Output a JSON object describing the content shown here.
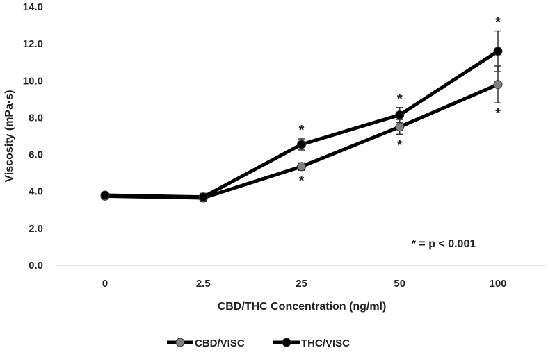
{
  "chart_data": {
    "type": "line",
    "title": "",
    "xlabel": "CBD/THC Concentration (ng/ml)",
    "ylabel": "Viscosity (mPa·s)",
    "categories": [
      "0",
      "2.5",
      "25",
      "50",
      "100"
    ],
    "ylim": [
      0,
      14
    ],
    "yticks": [
      "0.0",
      "2.0",
      "4.0",
      "6.0",
      "8.0",
      "10.0",
      "12.0",
      "14.0"
    ],
    "grid": false,
    "legend_position": "bottom",
    "annotation": "* = p < 0.001",
    "series": [
      {
        "name": "CBD/VISC",
        "color": "#808080",
        "values": [
          3.75,
          3.65,
          5.35,
          7.5,
          9.8
        ],
        "errors": [
          0.15,
          0.2,
          0.2,
          0.4,
          1.0
        ],
        "significant": [
          false,
          false,
          true,
          true,
          true
        ]
      },
      {
        "name": "THC/VISC",
        "color": "#000000",
        "values": [
          3.8,
          3.7,
          6.55,
          8.15,
          11.6
        ],
        "errors": [
          0.15,
          0.2,
          0.3,
          0.4,
          1.1
        ],
        "significant": [
          false,
          false,
          true,
          true,
          true
        ]
      }
    ]
  }
}
